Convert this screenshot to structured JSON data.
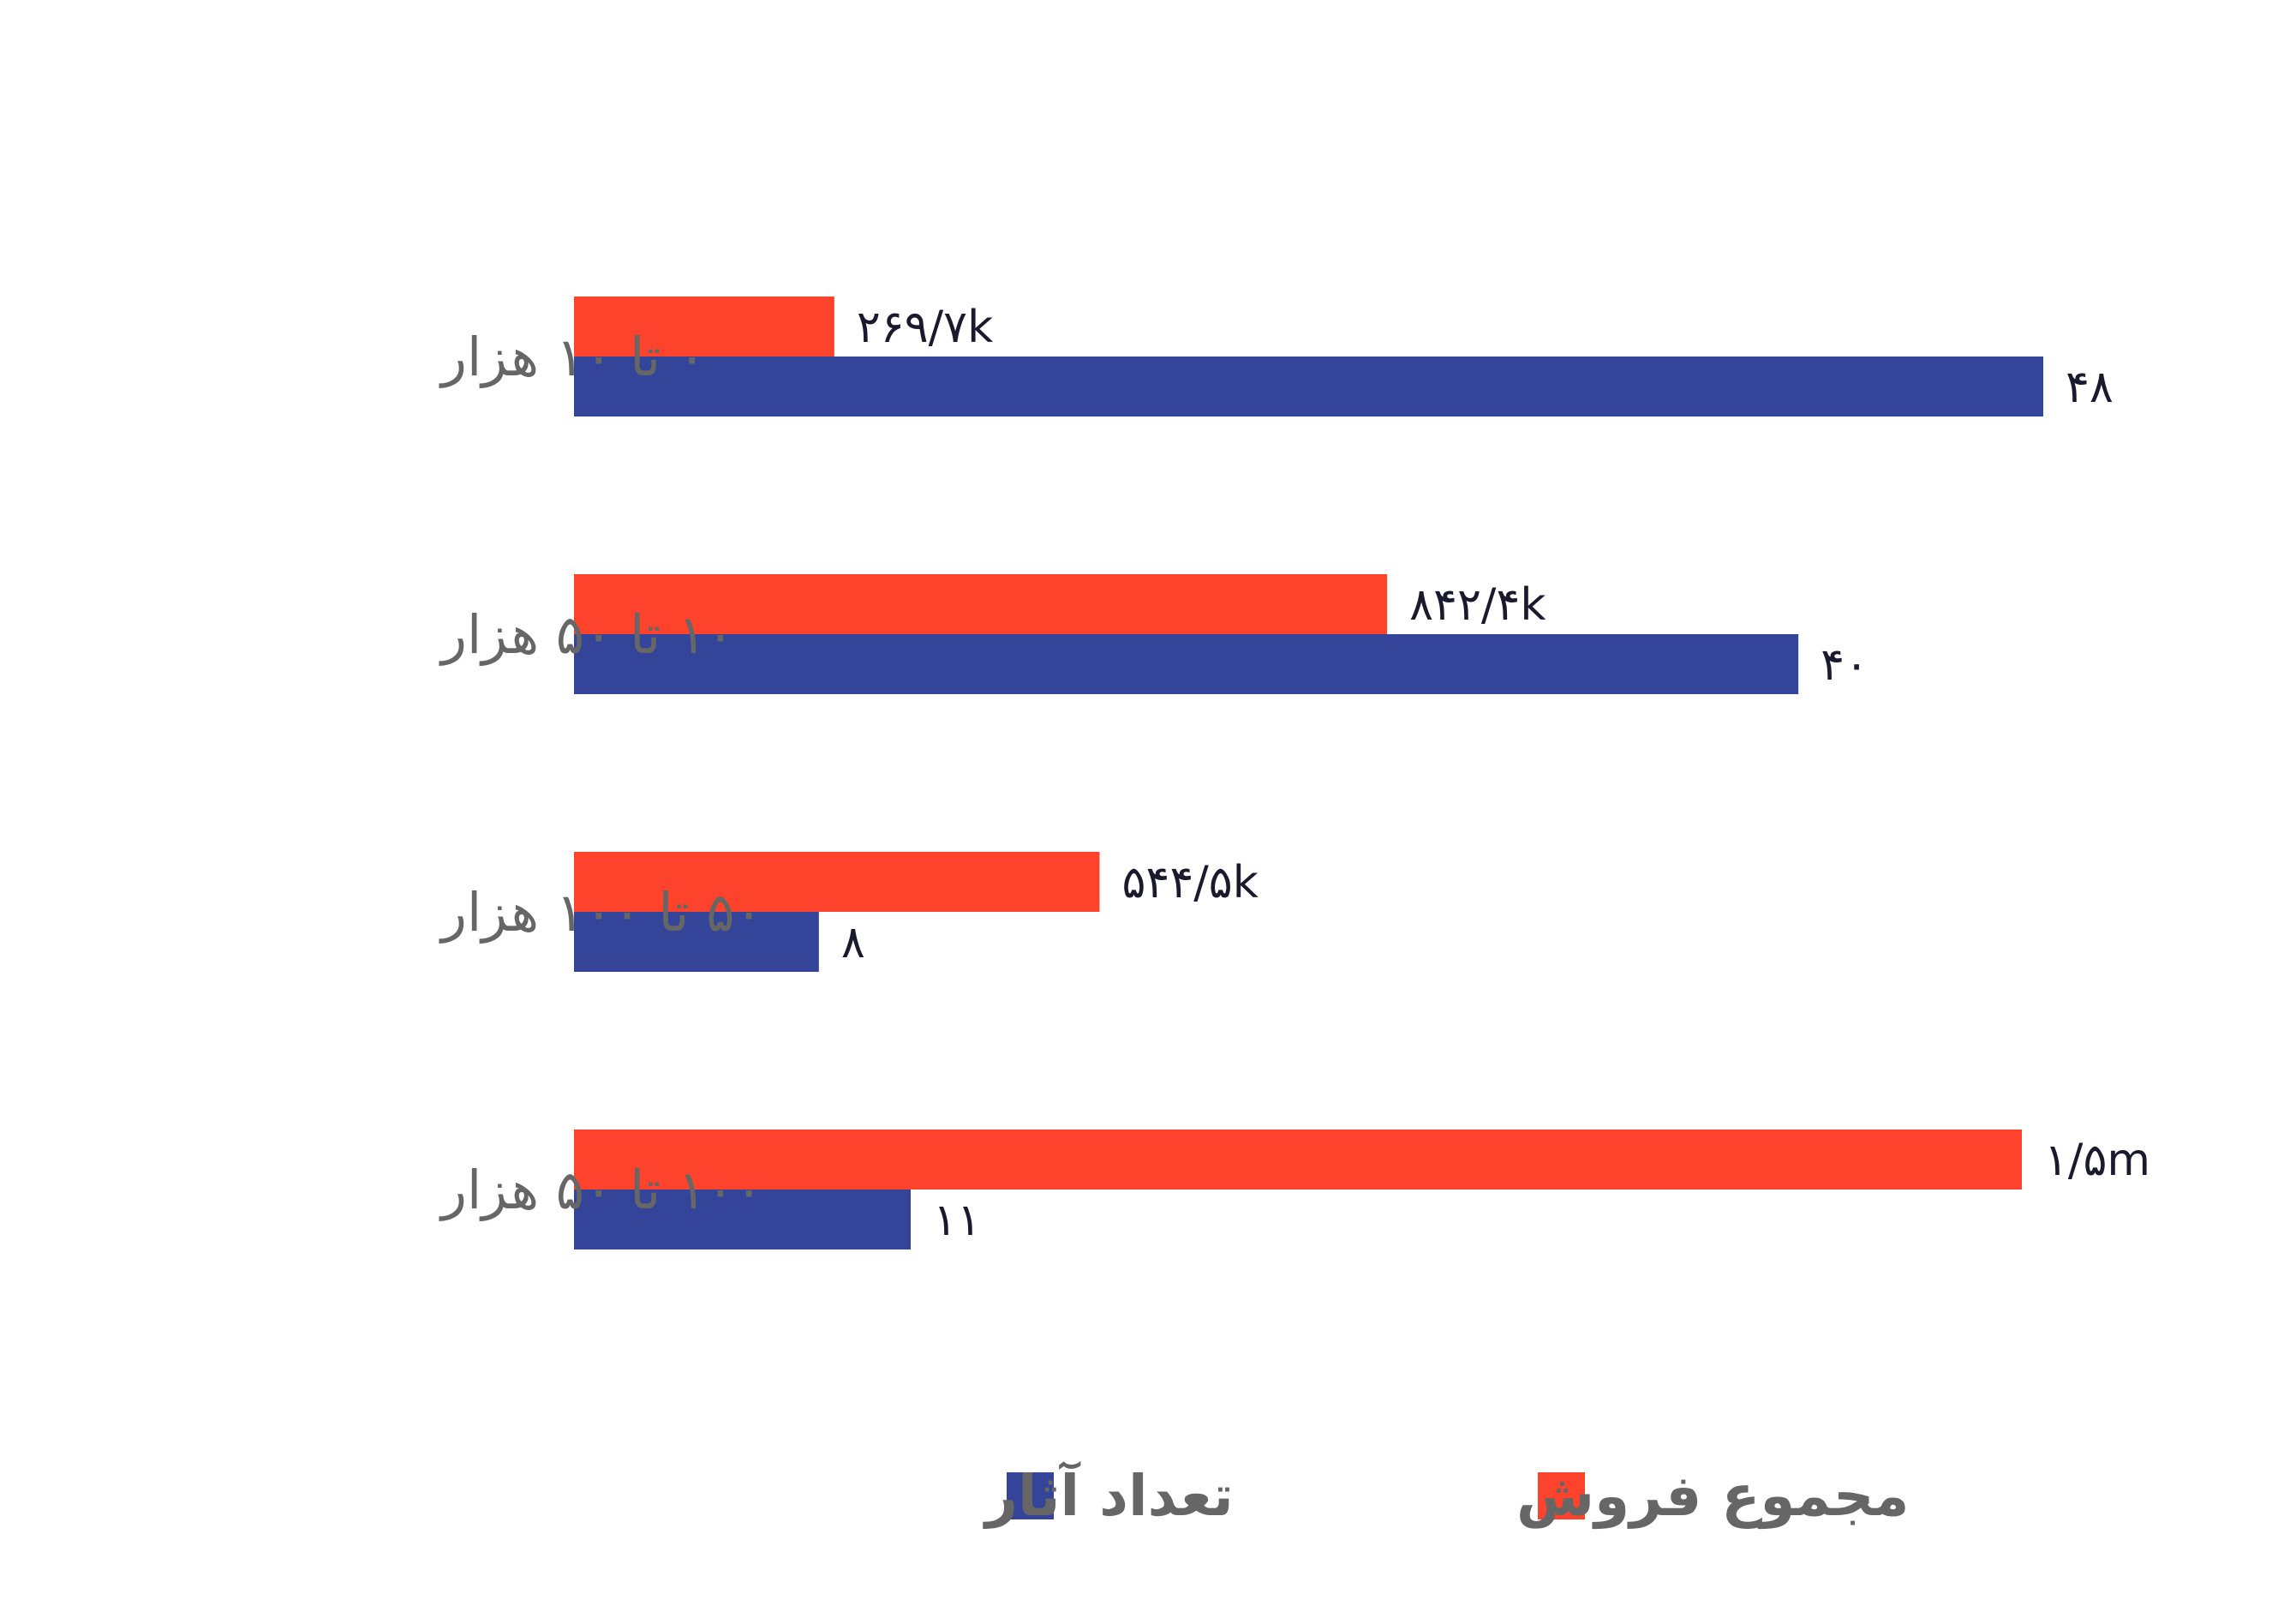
{
  "chart_data": {
    "type": "bar",
    "orientation": "horizontal",
    "categories": [
      "۰ تا ۱۰ هزار",
      "۱۰ تا ۵۰ هزار",
      "۵۰ تا ۱۰۰ هزار",
      "۱۰۰ تا ۵۰ هزار"
    ],
    "series": [
      {
        "name": "مجموع فروش",
        "color": "#fd432c",
        "values": [
          269700,
          842400,
          544500,
          1500000
        ],
        "labels": [
          "۲۶۹/۷k",
          "۸۴۲/۴k",
          "۵۴۴/۵k",
          "۱/۵m"
        ]
      },
      {
        "name": "تعداد آثار",
        "color": "#334499",
        "values": [
          48,
          40,
          8,
          11
        ],
        "labels": [
          "۴۸",
          "۴۰",
          "۸",
          "۱۱"
        ]
      }
    ],
    "legend_position": "bottom",
    "grid": false
  }
}
